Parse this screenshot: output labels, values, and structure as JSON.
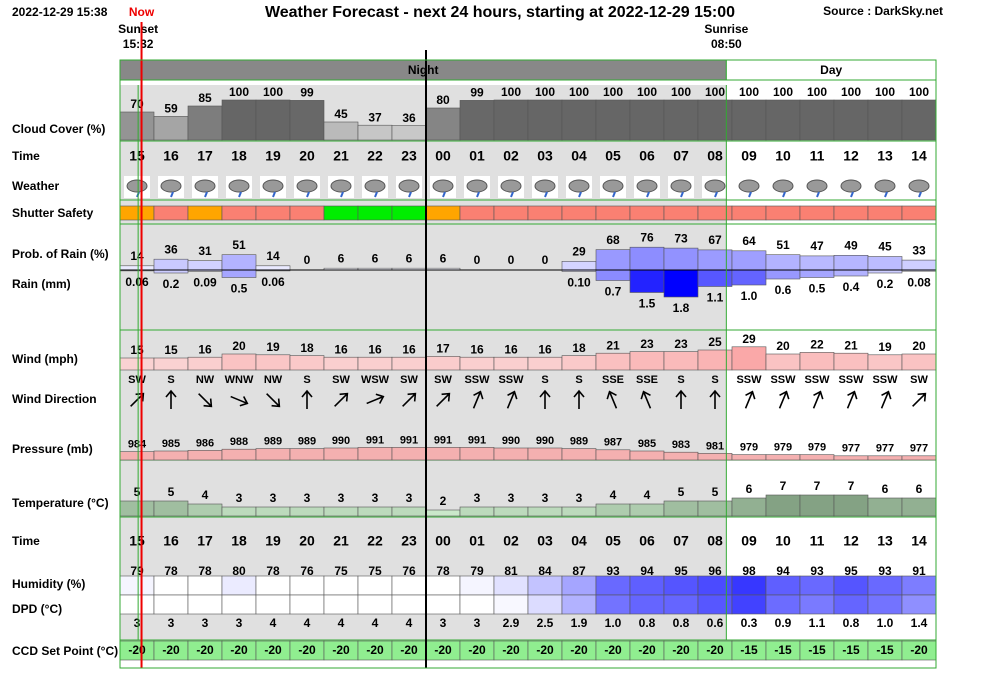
{
  "header": {
    "timestamp": "2022-12-29 15:38",
    "now": "Now",
    "title": "Weather Forecast - next 24 hours, starting at 2022-12-29 15:00",
    "source": "Source : DarkSky.net"
  },
  "sun": {
    "sunset_label": "Sunset",
    "sunset_time": "15:32",
    "sunrise_label": "Sunrise",
    "sunrise_time": "08:50"
  },
  "periods": {
    "night": "Night",
    "day": "Day"
  },
  "labels": {
    "cloud_cover": "Cloud Cover (%)",
    "time": "Time",
    "weather": "Weather",
    "shutter_safety": "Shutter Safety",
    "rain_probability": "Prob. of Rain (%)",
    "rain": "Rain (mm)",
    "wind": "Wind (mph)",
    "wind_direction": "Wind Direction",
    "pressure": "Pressure (mb)",
    "temperature": "Temperature (°C)",
    "time2": "Time",
    "humidity": "Humidity (%)",
    "dpd": "DPD (°C)",
    "ccd": "CCD Set Point (°C)"
  },
  "hours": [
    "15",
    "16",
    "17",
    "18",
    "19",
    "20",
    "21",
    "22",
    "23",
    "00",
    "01",
    "02",
    "03",
    "04",
    "05",
    "06",
    "07",
    "08",
    "09",
    "10",
    "11",
    "12",
    "13",
    "14"
  ],
  "cloud_cover": [
    70,
    59,
    85,
    100,
    100,
    99,
    45,
    37,
    36,
    80,
    99,
    100,
    100,
    100,
    100,
    100,
    100,
    100,
    100,
    100,
    100,
    100,
    100,
    100
  ],
  "shutter_safety": [
    "#ffa500",
    "#fa8072",
    "#ffa500",
    "#fa8072",
    "#fa8072",
    "#fa8072",
    "#00ee00",
    "#00ee00",
    "#00ee00",
    "#ffa500",
    "#fa8072",
    "#fa8072",
    "#fa8072",
    "#fa8072",
    "#fa8072",
    "#fa8072",
    "#fa8072",
    "#fa8072",
    "#fa8072",
    "#fa8072",
    "#fa8072",
    "#fa8072",
    "#fa8072",
    "#fa8072"
  ],
  "rain_probability": [
    14,
    36,
    31,
    51,
    14,
    0,
    6,
    6,
    6,
    6,
    0,
    0,
    0,
    29,
    68,
    76,
    73,
    67,
    64,
    51,
    47,
    49,
    45,
    33
  ],
  "rain": {
    "values": [
      0.06,
      0.2,
      0.09,
      0.5,
      0.06,
      null,
      null,
      null,
      null,
      null,
      null,
      null,
      null,
      0.1,
      0.7,
      1.5,
      1.8,
      1.1,
      1.0,
      0.6,
      0.5,
      0.4,
      0.2,
      0.08
    ],
    "value_labels": [
      "0.06",
      "0.2",
      "0.09",
      "0.5",
      "0.06",
      null,
      null,
      null,
      null,
      null,
      null,
      null,
      null,
      "0.10",
      "0.7",
      "1.5",
      "1.8",
      "1.1",
      "1.0",
      "0.6",
      "0.5",
      "0.4",
      "0.2",
      "0.08"
    ]
  },
  "wind": [
    15,
    15,
    16,
    20,
    19,
    18,
    16,
    16,
    16,
    17,
    16,
    16,
    16,
    18,
    21,
    23,
    23,
    25,
    29,
    20,
    22,
    21,
    19,
    20
  ],
  "wind_direction": [
    "SW",
    "S",
    "NW",
    "WNW",
    "NW",
    "S",
    "SW",
    "WSW",
    "SW",
    "SW",
    "SSW",
    "SSW",
    "S",
    "S",
    "SSE",
    "SSE",
    "S",
    "S",
    "SSW",
    "SSW",
    "SSW",
    "SSW",
    "SSW",
    "SW"
  ],
  "pressure": [
    984,
    985,
    986,
    988,
    989,
    989,
    990,
    991,
    991,
    991,
    991,
    990,
    990,
    989,
    987,
    985,
    983,
    981,
    979,
    979,
    979,
    977,
    977,
    977
  ],
  "temperature": [
    5,
    5,
    4,
    3,
    3,
    3,
    3,
    3,
    3,
    2,
    3,
    3,
    3,
    3,
    4,
    4,
    5,
    5,
    6,
    7,
    7,
    7,
    6,
    6
  ],
  "humidity": [
    79,
    78,
    78,
    80,
    78,
    76,
    75,
    75,
    76,
    78,
    79,
    81,
    84,
    87,
    93,
    94,
    95,
    96,
    98,
    94,
    93,
    95,
    93,
    91
  ],
  "dpd": {
    "values": [
      3,
      3,
      3,
      3,
      4,
      4,
      4,
      4,
      4,
      3,
      3,
      2.9,
      2.5,
      1.9,
      1.0,
      0.8,
      0.8,
      0.6,
      0.3,
      0.9,
      1.1,
      0.8,
      1.0,
      1.4
    ],
    "value_labels": [
      "3",
      "3",
      "3",
      "3",
      "4",
      "4",
      "4",
      "4",
      "4",
      "3",
      "3",
      "2.9",
      "2.5",
      "1.9",
      "1.0",
      "0.8",
      "0.8",
      "0.6",
      "0.3",
      "0.9",
      "1.1",
      "0.8",
      "1.0",
      "1.4"
    ]
  },
  "ccd": [
    -20,
    -20,
    -20,
    -20,
    -20,
    -20,
    -20,
    -20,
    -20,
    -20,
    -20,
    -20,
    -20,
    -20,
    -20,
    -20,
    -20,
    -20,
    -15,
    -15,
    -15,
    -15,
    -15,
    -20
  ]
}
